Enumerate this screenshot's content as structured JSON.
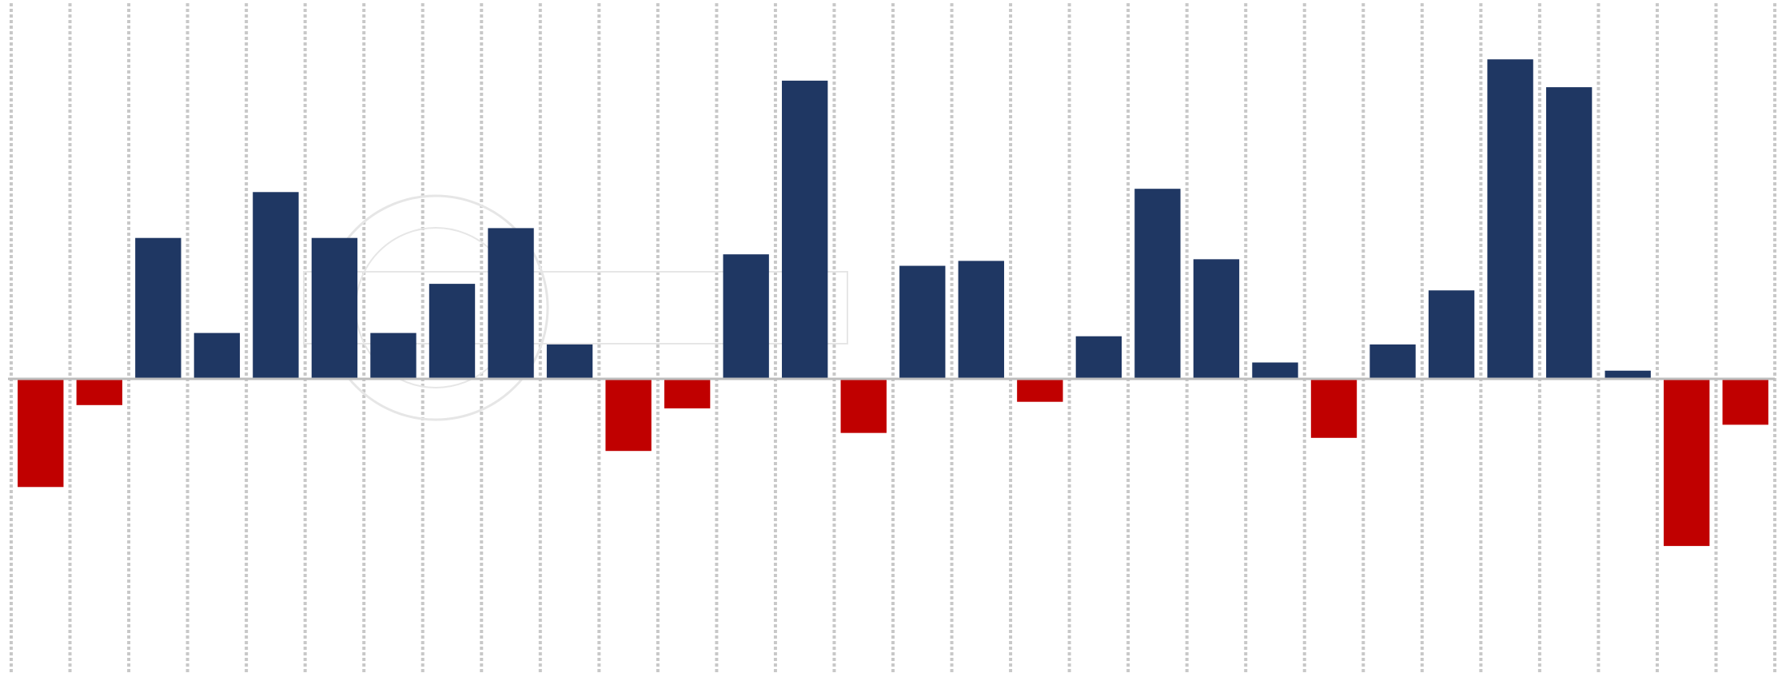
{
  "colors": {
    "positive": "#1f3763",
    "negative": "#c00000",
    "grid": "#c8c8c8",
    "zero_line": "#bdbdbd",
    "background": "#ffffff",
    "watermark": "#e6e6e6"
  },
  "chart_data": {
    "type": "bar",
    "title": "",
    "xlabel": "",
    "ylabel": "",
    "grid": true,
    "legend": "none",
    "ylim": [
      -8.5,
      10.5
    ],
    "categories": [
      "",
      "",
      "",
      "",
      "",
      "",
      "",
      "",
      "",
      "",
      "",
      "",
      "",
      "",
      "",
      "",
      "",
      "",
      "",
      "",
      "",
      "",
      "",
      "",
      "",
      "",
      "",
      "",
      "",
      ""
    ],
    "values": [
      -3.3,
      -0.8,
      4.3,
      1.4,
      5.7,
      4.3,
      1.4,
      2.9,
      4.6,
      1.05,
      -2.2,
      -0.9,
      3.8,
      9.1,
      -1.65,
      3.45,
      3.6,
      -0.7,
      1.3,
      5.8,
      3.65,
      0.5,
      -1.8,
      1.05,
      2.7,
      9.75,
      8.9,
      0.25,
      -5.1,
      -1.4
    ]
  }
}
